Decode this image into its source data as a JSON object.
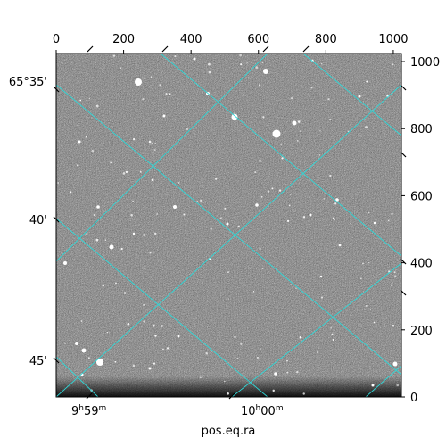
{
  "figure": {
    "xlabel": "pos.eq.ra",
    "top_ticks": [
      "0",
      "200",
      "400",
      "600",
      "800",
      "1000"
    ],
    "right_ticks": [
      "1000",
      "800",
      "600",
      "400",
      "200",
      "0"
    ],
    "dec_labels": [
      "65°35'",
      "40'",
      "45'"
    ],
    "ra_labels": [
      {
        "h": "9",
        "m": "59"
      },
      {
        "h": "10",
        "m": "00"
      }
    ]
  },
  "colors": {
    "background": "#ffffff",
    "grid": "#2fd7d7",
    "axes": "#000000"
  },
  "chart_data": {
    "type": "image",
    "xlabel": "pos.eq.ra",
    "pixel_axis_top": {
      "ticks": [
        0,
        200,
        400,
        600,
        800,
        1000
      ],
      "range": [
        0,
        1024
      ]
    },
    "pixel_axis_right": {
      "ticks": [
        0,
        200,
        400,
        600,
        800,
        1000
      ],
      "range": [
        0,
        1024
      ]
    },
    "dec_ticks": [
      "65°35'",
      "40'",
      "45'"
    ],
    "ra_ticks": [
      "9h59m",
      "10h00m"
    ],
    "grid": true
  }
}
